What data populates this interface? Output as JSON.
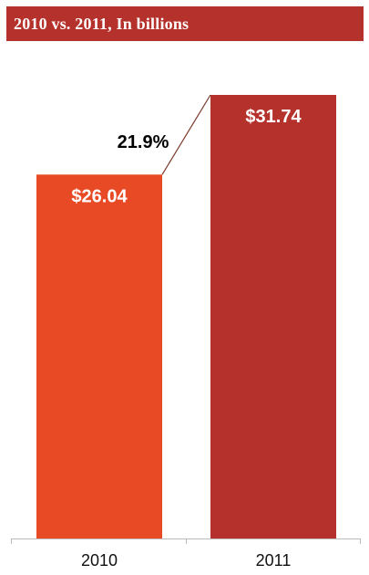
{
  "title": "2010 vs. 2011, In billions",
  "colors": {
    "title_bg": "#b5312b",
    "bar_2010": "#e84a25",
    "bar_2011": "#b5312b",
    "connector": "#7a3a2a",
    "axis": "#bbbbbb"
  },
  "chart_data": {
    "type": "bar",
    "title": "2010 vs. 2011, In billions",
    "categories": [
      "2010",
      "2011"
    ],
    "values": [
      26.04,
      31.74
    ],
    "value_labels": [
      "$26.04",
      "$31.74"
    ],
    "annotations": [
      {
        "text": "21.9%"
      }
    ],
    "xlabel": "",
    "ylabel": "",
    "ylim": [
      0,
      31.74
    ],
    "grid": false,
    "legend": "none"
  }
}
